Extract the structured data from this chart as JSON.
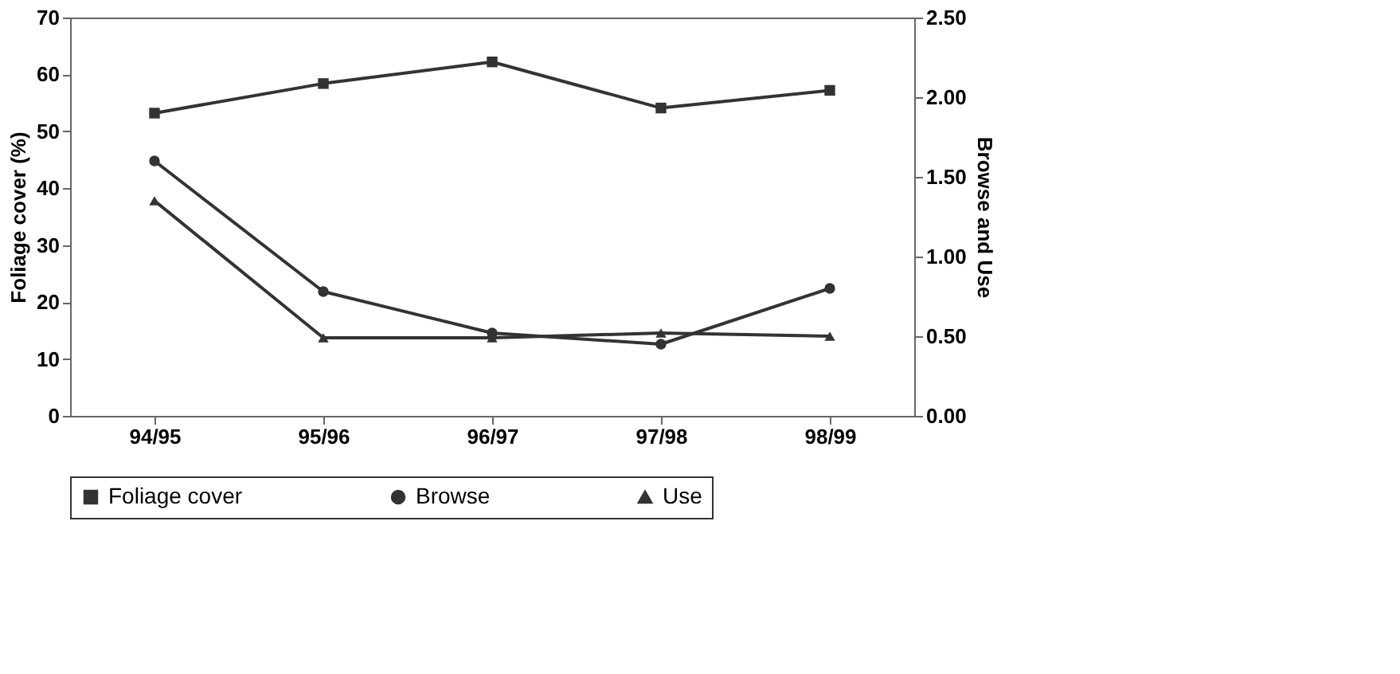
{
  "chart_data": {
    "type": "line",
    "categories": [
      "94/95",
      "95/96",
      "96/97",
      "97/98",
      "98/99"
    ],
    "ylabel": "Foliage cover (%)",
    "y2label": "Browse and Use",
    "ylim": [
      0,
      70
    ],
    "yticks": [
      0,
      10,
      20,
      30,
      40,
      50,
      60,
      70
    ],
    "y2lim": [
      0,
      2.5
    ],
    "y2ticks": [
      {
        "value": 0,
        "label": "0.00"
      },
      {
        "value": 0.5,
        "label": "0.50"
      },
      {
        "value": 1,
        "label": "1.00"
      },
      {
        "value": 1.5,
        "label": "1.50"
      },
      {
        "value": 2,
        "label": "2.00"
      },
      {
        "value": 2.5,
        "label": "2.50"
      }
    ],
    "series": [
      {
        "name": "Foliage cover",
        "color": "#333333",
        "marker": "square",
        "values": [
          53.2,
          58.4,
          62.2,
          54.1,
          57.2
        ]
      },
      {
        "name": "Browse",
        "color": "#333333",
        "marker": "circle",
        "axis": "y2",
        "values": [
          1.6,
          0.78,
          0.52,
          0.45,
          0.8
        ]
      },
      {
        "name": "Use",
        "color": "#333333",
        "marker": "triangle",
        "axis": "y2",
        "values": [
          1.35,
          0.49,
          0.49,
          0.52,
          0.5
        ]
      }
    ],
    "legend": "bottom",
    "grid": false
  }
}
